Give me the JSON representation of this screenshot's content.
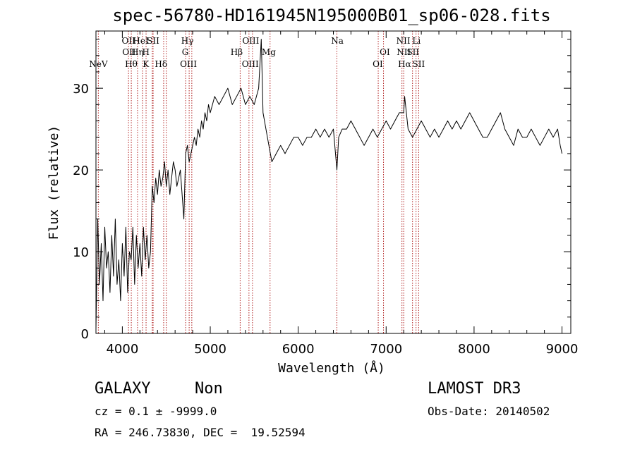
{
  "chart_data": {
    "type": "line",
    "title": "spec-56780-HD161945N195000B01_sp06-028.fits",
    "xlabel": "Wavelength (Å)",
    "ylabel": "Flux (relative)",
    "xlim": [
      3700,
      9100
    ],
    "ylim": [
      0,
      37
    ],
    "x_ticks": [
      {
        "value": 4000,
        "label": "4000"
      },
      {
        "value": 5000,
        "label": "5000"
      },
      {
        "value": 6000,
        "label": "6000"
      },
      {
        "value": 7000,
        "label": "7000"
      },
      {
        "value": 8000,
        "label": "8000"
      },
      {
        "value": 9000,
        "label": "9000"
      }
    ],
    "y_ticks": [
      {
        "value": 0,
        "label": "0"
      },
      {
        "value": 10,
        "label": "10"
      },
      {
        "value": 20,
        "label": "20"
      },
      {
        "value": 30,
        "label": "30"
      }
    ],
    "grid": false,
    "line_color": "#000000",
    "marker_color": "#b22222",
    "spectral_lines": [
      {
        "label": "NeV",
        "wavelength": 3727,
        "row": 3
      },
      {
        "label": "OII",
        "wavelength": 4070,
        "row": 1
      },
      {
        "label": "OII",
        "wavelength": 4076,
        "row": 2
      },
      {
        "label": "Hθ",
        "wavelength": 4101,
        "row": 3
      },
      {
        "label": "Hη",
        "wavelength": 4172,
        "row": 2
      },
      {
        "label": "HeI",
        "wavelength": 4210,
        "row": 1
      },
      {
        "label": "H",
        "wavelength": 4268,
        "row": 2
      },
      {
        "label": "K",
        "wavelength": 4268,
        "row": 3
      },
      {
        "label": "SII",
        "wavelength": 4350,
        "row": 1
      },
      {
        "label": "Hδ",
        "wavelength": 4440,
        "row": 3
      },
      {
        "label": "Hγ",
        "wavelength": 4740,
        "row": 1
      },
      {
        "label": "G",
        "wavelength": 4715,
        "row": 2
      },
      {
        "label": "OIII",
        "wavelength": 4752,
        "row": 3
      },
      {
        "label": "Hβ",
        "wavelength": 5300,
        "row": 2
      },
      {
        "label": "OIII",
        "wavelength": 5460,
        "row": 1
      },
      {
        "label": "OIII",
        "wavelength": 5455,
        "row": 3
      },
      {
        "label": "Mg",
        "wavelength": 5665,
        "row": 2
      },
      {
        "label": "Na",
        "wavelength": 6445,
        "row": 1
      },
      {
        "label": "OI",
        "wavelength": 6985,
        "row": 2
      },
      {
        "label": "OI",
        "wavelength": 6905,
        "row": 3
      },
      {
        "label": "NII",
        "wavelength": 7195,
        "row": 1
      },
      {
        "label": "NII",
        "wavelength": 7200,
        "row": 2
      },
      {
        "label": "Hα",
        "wavelength": 7210,
        "row": 3
      },
      {
        "label": "Li",
        "wavelength": 7345,
        "row": 1
      },
      {
        "label": "SII",
        "wavelength": 7305,
        "row": 2
      },
      {
        "label": "SII",
        "wavelength": 7370,
        "row": 3
      }
    ],
    "marker_wavelengths": [
      3727,
      4070,
      4102,
      4173,
      4230,
      4270,
      4340,
      4350,
      4470,
      4500,
      4720,
      4760,
      4790,
      5340,
      5440,
      5480,
      5680,
      6440,
      6910,
      6970,
      7180,
      7200,
      7300,
      7340,
      7370
    ],
    "spectrum": {
      "x": [
        3700,
        3720,
        3740,
        3760,
        3780,
        3800,
        3820,
        3840,
        3860,
        3880,
        3900,
        3920,
        3940,
        3960,
        3980,
        4000,
        4020,
        4040,
        4060,
        4080,
        4100,
        4120,
        4140,
        4160,
        4180,
        4200,
        4220,
        4240,
        4260,
        4280,
        4300,
        4320,
        4340,
        4360,
        4380,
        4400,
        4420,
        4440,
        4460,
        4480,
        4500,
        4520,
        4540,
        4560,
        4580,
        4600,
        4620,
        4640,
        4660,
        4680,
        4700,
        4720,
        4740,
        4760,
        4780,
        4800,
        4820,
        4840,
        4860,
        4880,
        4900,
        4920,
        4940,
        4960,
        4980,
        5000,
        5050,
        5100,
        5150,
        5200,
        5250,
        5300,
        5350,
        5400,
        5450,
        5500,
        5550,
        5580,
        5600,
        5650,
        5700,
        5750,
        5800,
        5850,
        5900,
        5950,
        6000,
        6050,
        6100,
        6150,
        6200,
        6250,
        6300,
        6350,
        6400,
        6440,
        6460,
        6500,
        6550,
        6600,
        6650,
        6700,
        6750,
        6800,
        6850,
        6900,
        6950,
        7000,
        7050,
        7100,
        7150,
        7200,
        7210,
        7250,
        7300,
        7350,
        7400,
        7450,
        7500,
        7550,
        7600,
        7650,
        7700,
        7750,
        7800,
        7850,
        7900,
        7950,
        8000,
        8050,
        8100,
        8150,
        8200,
        8250,
        8300,
        8350,
        8400,
        8450,
        8500,
        8550,
        8600,
        8650,
        8700,
        8750,
        8800,
        8850,
        8900,
        8950,
        8980,
        9000
      ],
      "y": [
        0.5,
        14,
        6,
        11,
        4,
        13,
        8,
        10,
        5,
        12,
        7,
        14,
        6,
        9,
        4,
        11,
        7,
        13,
        5,
        10,
        9,
        13,
        6,
        12,
        8,
        11,
        7,
        13,
        9,
        12,
        8,
        10,
        18,
        16,
        19,
        17,
        20,
        18,
        19,
        21,
        18,
        20,
        17,
        19,
        21,
        20,
        18,
        19,
        20,
        17,
        14,
        22,
        23,
        21,
        22,
        23,
        24,
        23,
        25,
        24,
        26,
        25,
        27,
        26,
        28,
        27,
        29,
        28,
        29,
        30,
        28,
        29,
        30,
        28,
        29,
        28,
        30,
        36,
        27,
        24,
        21,
        22,
        23,
        22,
        23,
        24,
        24,
        23,
        24,
        24,
        25,
        24,
        25,
        24,
        25,
        20,
        24,
        25,
        25,
        26,
        25,
        24,
        23,
        24,
        25,
        24,
        25,
        26,
        25,
        26,
        27,
        27,
        29,
        25,
        24,
        25,
        26,
        25,
        24,
        25,
        24,
        25,
        26,
        25,
        26,
        25,
        26,
        27,
        26,
        25,
        24,
        24,
        25,
        26,
        27,
        25,
        24,
        23,
        25,
        24,
        24,
        25,
        24,
        23,
        24,
        25,
        24,
        25,
        23,
        22
      ]
    }
  },
  "info": {
    "object_class": "GALAXY",
    "subclass": "Non",
    "survey": "LAMOST DR3",
    "cz_line": "cz = 0.1 ± -9999.0",
    "obs_date": "Obs-Date: 20140502",
    "coords": "RA = 246.73830, DEC =  19.52594"
  }
}
